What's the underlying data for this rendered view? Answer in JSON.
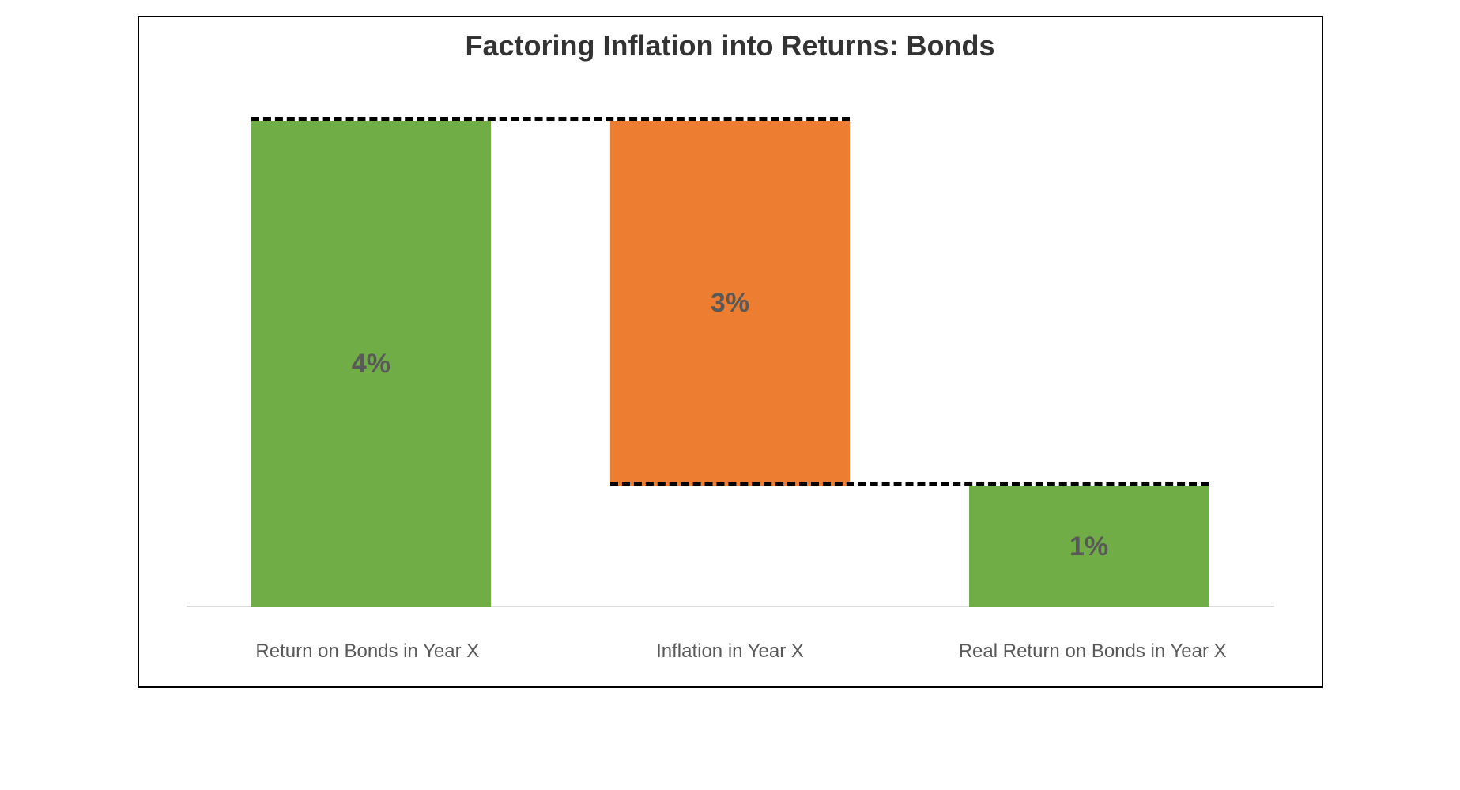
{
  "chart": {
    "type": "waterfall",
    "title": "Factoring Inflation into Returns: Bonds",
    "title_fontsize": 36,
    "title_color": "#333333",
    "background_color": "#ffffff",
    "border_color": "#000000",
    "baseline_color": "#d9d9d9",
    "ylim": [
      0,
      4.2
    ],
    "label_fontsize": 24,
    "value_fontsize": 34,
    "value_color": "#595959",
    "label_color": "#595959",
    "bar_width_pct": 22,
    "gap_pct": 11,
    "connector": {
      "color": "#000000",
      "dash_width": 5,
      "dash_pattern": "12 8"
    },
    "bars": [
      {
        "label": "Return on Bonds in Year X",
        "value": 4,
        "display": "4%",
        "start": 0,
        "end": 4,
        "color": "#70ad47"
      },
      {
        "label": "Inflation in Year X",
        "value": -3,
        "display": "3%",
        "start": 4,
        "end": 1,
        "color": "#ed7d31"
      },
      {
        "label": "Real Return on Bonds in Year X",
        "value": 1,
        "display": "1%",
        "start": 0,
        "end": 1,
        "color": "#70ad47"
      }
    ],
    "connectors": [
      {
        "from_bar": 0,
        "to_bar": 1,
        "level": 4
      },
      {
        "from_bar": 1,
        "to_bar": 2,
        "level": 1
      }
    ]
  }
}
